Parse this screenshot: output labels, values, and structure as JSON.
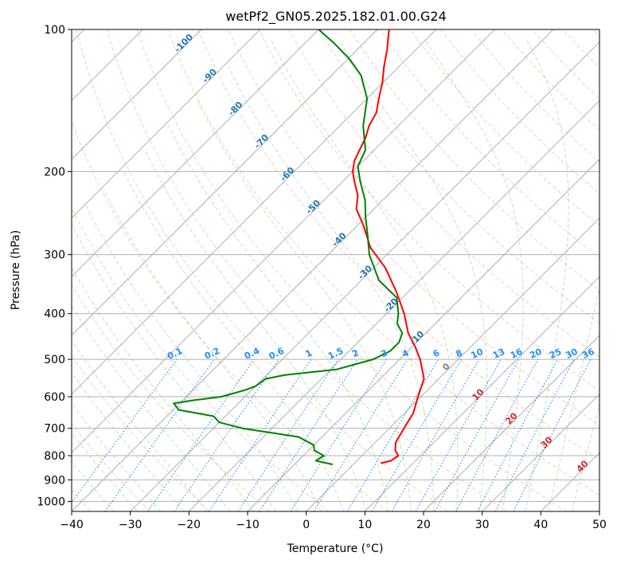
{
  "chart_data": {
    "type": "line",
    "title": "wetPf2_GN05.2025.182.01.00.G24",
    "xlabel": "Temperature (°C)",
    "ylabel": "Pressure (hPa)",
    "xlim": [
      -40,
      50
    ],
    "ylim": [
      1050,
      100
    ],
    "y_scale": "log",
    "x_ticks": [
      "−40",
      "−30",
      "−20",
      "−10",
      "0",
      "10",
      "20",
      "30",
      "40",
      "50"
    ],
    "y_ticks": [
      "100",
      "200",
      "300",
      "400",
      "500",
      "600",
      "700",
      "800",
      "900",
      "1000"
    ],
    "grid": true,
    "isotherm_labels": [
      "-100",
      "-90",
      "-80",
      "-70",
      "-60",
      "-50",
      "-40",
      "-30",
      "-20",
      "-10"
    ],
    "mixing_ratio_labels": [
      "0.1",
      "0.2",
      "0.4",
      "0.6",
      "1",
      "1.5",
      "2",
      "3",
      "4",
      "6",
      "8",
      "10",
      "13",
      "16",
      "20",
      "25",
      "30",
      "36"
    ],
    "wet_bulb_labels": [
      "0",
      "10",
      "20",
      "30",
      "40"
    ],
    "series": [
      {
        "color": "#ff0000",
        "points": [
          {
            "p": 830,
            "t": 4.5
          },
          {
            "p": 820,
            "t": 5.8
          },
          {
            "p": 800,
            "t": 6.2
          },
          {
            "p": 780,
            "t": 4.8
          },
          {
            "p": 750,
            "t": 3.5
          },
          {
            "p": 700,
            "t": 2.5
          },
          {
            "p": 650,
            "t": 1.5
          },
          {
            "p": 600,
            "t": -0.5
          },
          {
            "p": 550,
            "t": -2.5
          },
          {
            "p": 500,
            "t": -6.5
          },
          {
            "p": 470,
            "t": -9.5
          },
          {
            "p": 440,
            "t": -13
          },
          {
            "p": 400,
            "t": -17
          },
          {
            "p": 360,
            "t": -22
          },
          {
            "p": 320,
            "t": -28
          },
          {
            "p": 290,
            "t": -34
          },
          {
            "p": 260,
            "t": -39
          },
          {
            "p": 240,
            "t": -43
          },
          {
            "p": 225,
            "t": -45
          },
          {
            "p": 210,
            "t": -48
          },
          {
            "p": 200,
            "t": -50
          },
          {
            "p": 190,
            "t": -51.5
          },
          {
            "p": 180,
            "t": -52.5
          },
          {
            "p": 170,
            "t": -53.5
          },
          {
            "p": 160,
            "t": -55
          },
          {
            "p": 150,
            "t": -56
          },
          {
            "p": 140,
            "t": -58
          },
          {
            "p": 130,
            "t": -60
          },
          {
            "p": 120,
            "t": -62.5
          },
          {
            "p": 110,
            "t": -65
          },
          {
            "p": 100,
            "t": -68
          }
        ]
      },
      {
        "color": "#008000",
        "points": [
          {
            "p": 835,
            "t": -3.5
          },
          {
            "p": 820,
            "t": -7
          },
          {
            "p": 800,
            "t": -6.5
          },
          {
            "p": 780,
            "t": -9
          },
          {
            "p": 760,
            "t": -10
          },
          {
            "p": 730,
            "t": -14
          },
          {
            "p": 700,
            "t": -25
          },
          {
            "p": 680,
            "t": -30
          },
          {
            "p": 660,
            "t": -32
          },
          {
            "p": 640,
            "t": -39
          },
          {
            "p": 620,
            "t": -41
          },
          {
            "p": 610,
            "t": -38
          },
          {
            "p": 600,
            "t": -34
          },
          {
            "p": 580,
            "t": -31
          },
          {
            "p": 570,
            "t": -30
          },
          {
            "p": 550,
            "t": -29.5
          },
          {
            "p": 540,
            "t": -27
          },
          {
            "p": 525,
            "t": -19
          },
          {
            "p": 500,
            "t": -14.5
          },
          {
            "p": 480,
            "t": -13
          },
          {
            "p": 460,
            "t": -13
          },
          {
            "p": 440,
            "t": -14
          },
          {
            "p": 420,
            "t": -16.5
          },
          {
            "p": 400,
            "t": -18
          },
          {
            "p": 370,
            "t": -21
          },
          {
            "p": 340,
            "t": -27
          },
          {
            "p": 300,
            "t": -33
          },
          {
            "p": 270,
            "t": -37
          },
          {
            "p": 250,
            "t": -40
          },
          {
            "p": 230,
            "t": -43
          },
          {
            "p": 210,
            "t": -47
          },
          {
            "p": 195,
            "t": -50
          },
          {
            "p": 180,
            "t": -51.5
          },
          {
            "p": 160,
            "t": -56
          },
          {
            "p": 140,
            "t": -60
          },
          {
            "p": 125,
            "t": -65
          },
          {
            "p": 115,
            "t": -70
          },
          {
            "p": 107,
            "t": -75
          },
          {
            "p": 100,
            "t": -80
          }
        ]
      }
    ]
  }
}
